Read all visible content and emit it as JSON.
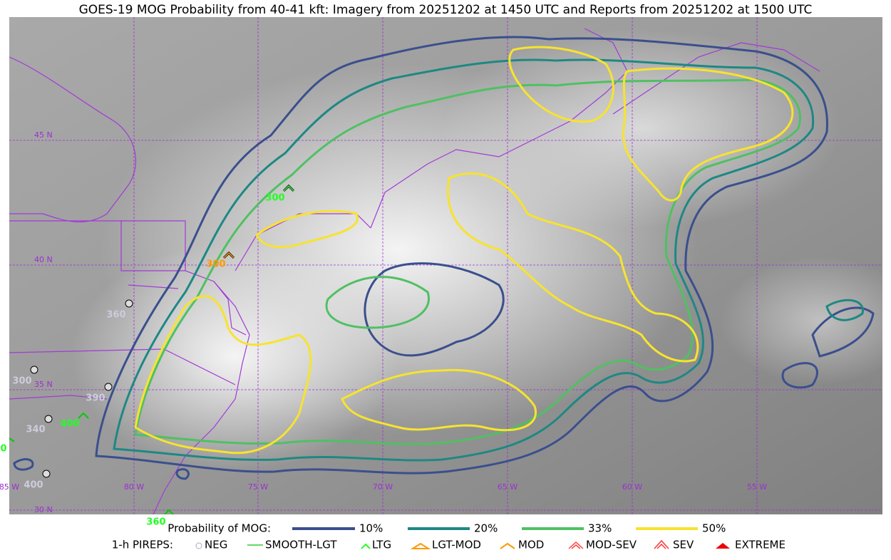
{
  "title": "GOES-19 MOG Probability from 40-41 kft: Imagery from 20251202 at 1450 UTC and Reports from 20251202 at 1500 UTC",
  "map": {
    "lat_labels": [
      "45 N",
      "40 N",
      "35 N",
      "30 N"
    ],
    "lon_labels": [
      "85 W",
      "80 W",
      "75 W",
      "70 W",
      "65 W",
      "60 W",
      "55 W"
    ]
  },
  "pireps": [
    {
      "label": "300"
    },
    {
      "label": "300"
    },
    {
      "label": "360"
    },
    {
      "label": "300"
    },
    {
      "label": "390"
    },
    {
      "label": "400"
    },
    {
      "label": "340"
    },
    {
      "label": "400"
    },
    {
      "label": "360"
    },
    {
      "label": "0"
    }
  ],
  "legend": {
    "probability": {
      "title": "Probability of MOG:",
      "items": [
        "10%",
        "20%",
        "33%",
        "50%"
      ]
    },
    "pireps": {
      "title": "1-h PIREPS:",
      "items": [
        "NEG",
        "SMOOTH-LGT",
        "LTG",
        "LGT-MOD",
        "MOD",
        "MOD-SEV",
        "SEV",
        "EXTREME"
      ]
    }
  }
}
